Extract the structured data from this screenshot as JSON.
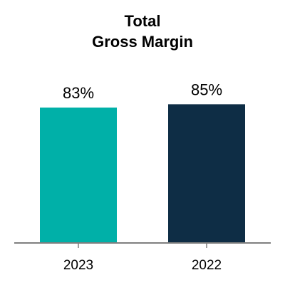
{
  "chart_data": {
    "type": "bar",
    "title": [
      "Total",
      "Gross Margin"
    ],
    "xlabel": "",
    "ylabel": "",
    "categories": [
      "2023",
      "2022"
    ],
    "values": [
      83,
      85
    ],
    "data_labels": [
      "83%",
      "85%"
    ],
    "ylim": [
      0,
      100
    ],
    "colors": [
      "#00B0A8",
      "#0E2D45"
    ],
    "axis_color": "#7F7F7F",
    "grid": false,
    "legend": "none"
  }
}
